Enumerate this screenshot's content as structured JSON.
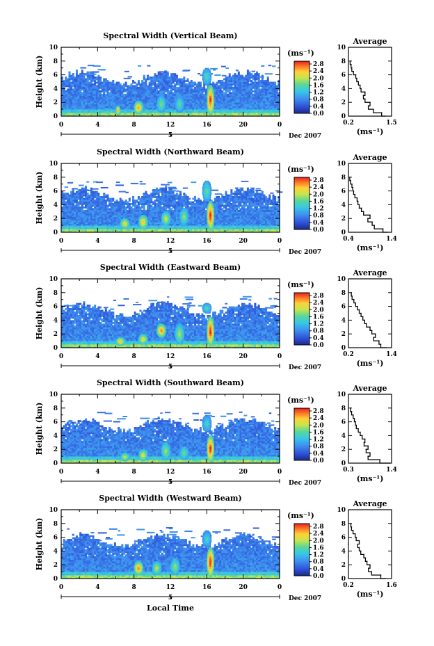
{
  "chart_data": [
    {
      "type": "heatmap",
      "title": "Spectral Width (Vertical Beam)",
      "ylabel": "Height (km)",
      "xlabel": "",
      "date_label": "5",
      "month_label": "Dec 2007",
      "x_ticks": [
        "0",
        "4",
        "8",
        "12",
        "16",
        "20",
        "0"
      ],
      "y_ticks": [
        "0",
        "2",
        "4",
        "6",
        "8",
        "10"
      ],
      "xlim": [
        0,
        24
      ],
      "ylim": [
        0,
        10
      ],
      "colorbar": {
        "unit": "(ms⁻¹)",
        "ticks": [
          "0.0",
          "0.4",
          "0.8",
          "1.2",
          "1.6",
          "2.0",
          "2.4",
          "2.8"
        ],
        "range": [
          0,
          2.8
        ]
      },
      "regions": [
        {
          "x": [
            6,
            6.5
          ],
          "y": [
            0.2,
            1.5
          ],
          "value": 2.5
        },
        {
          "x": [
            8,
            9
          ],
          "y": [
            0.3,
            2.2
          ],
          "value": 2.4
        },
        {
          "x": [
            10.5,
            11.5
          ],
          "y": [
            0.5,
            3.0
          ],
          "value": 1.6
        },
        {
          "x": [
            12.5,
            13.5
          ],
          "y": [
            0.5,
            3.0
          ],
          "value": 1.5
        },
        {
          "x": [
            16,
            16.8
          ],
          "y": [
            0.2,
            4.5
          ],
          "value": 2.8
        },
        {
          "x": [
            15.5,
            16.5
          ],
          "y": [
            4.5,
            7.0
          ],
          "value": 1.4
        }
      ],
      "profile": {
        "title": "Average",
        "xlabel": "(ms⁻¹)",
        "x_ticks": [
          "0.2",
          "1.5"
        ],
        "xlim": [
          0.2,
          1.5
        ],
        "y": [
          0,
          0.5,
          1,
          1.5,
          2,
          2.5,
          3,
          3.5,
          4,
          4.5,
          5,
          5.5,
          6,
          6.5,
          7,
          7.5,
          8
        ],
        "x": [
          1.3,
          1.2,
          0.95,
          0.8,
          0.85,
          0.7,
          0.65,
          0.7,
          0.58,
          0.55,
          0.5,
          0.45,
          0.42,
          0.35,
          0.3,
          0.28,
          0.25
        ]
      }
    },
    {
      "type": "heatmap",
      "title": "Spectral Width (Northward Beam)",
      "ylabel": "Height (km)",
      "xlabel": "",
      "date_label": "5",
      "month_label": "Dec 2007",
      "x_ticks": [
        "0",
        "4",
        "8",
        "12",
        "16",
        "20",
        "0"
      ],
      "y_ticks": [
        "0",
        "2",
        "4",
        "6",
        "8",
        "10"
      ],
      "xlim": [
        0,
        24
      ],
      "ylim": [
        0,
        10
      ],
      "colorbar": {
        "unit": "(ms⁻¹)",
        "ticks": [
          "0.0",
          "0.4",
          "0.8",
          "1.2",
          "1.6",
          "2.0",
          "2.4",
          "2.8"
        ],
        "range": [
          0,
          2.8
        ]
      },
      "regions": [
        {
          "x": [
            6.5,
            7.5
          ],
          "y": [
            0.5,
            2.0
          ],
          "value": 2.2
        },
        {
          "x": [
            8.5,
            9.5
          ],
          "y": [
            0.5,
            2.5
          ],
          "value": 2.3
        },
        {
          "x": [
            11,
            12
          ],
          "y": [
            1.0,
            3.0
          ],
          "value": 2.0
        },
        {
          "x": [
            13,
            14
          ],
          "y": [
            1.0,
            3.5
          ],
          "value": 1.7
        },
        {
          "x": [
            16,
            16.8
          ],
          "y": [
            0.3,
            4.5
          ],
          "value": 2.8
        },
        {
          "x": [
            15.5,
            16.5
          ],
          "y": [
            4.5,
            7.5
          ],
          "value": 1.5
        }
      ],
      "profile": {
        "title": "Average",
        "xlabel": "(ms⁻¹)",
        "x_ticks": [
          "0.4",
          "1.4"
        ],
        "xlim": [
          0.4,
          1.4
        ],
        "y": [
          0,
          0.5,
          1,
          1.5,
          2,
          2.5,
          3,
          3.5,
          4,
          4.5,
          5,
          5.5,
          6,
          6.5,
          7,
          7.5,
          8
        ],
        "x": [
          1.3,
          1.2,
          1.0,
          0.95,
          0.85,
          0.9,
          0.75,
          0.7,
          0.65,
          0.62,
          0.6,
          0.55,
          0.52,
          0.5,
          0.48,
          0.45,
          0.43
        ]
      }
    },
    {
      "type": "heatmap",
      "title": "Spectral Width (Eastward Beam)",
      "ylabel": "Height (km)",
      "xlabel": "",
      "date_label": "5",
      "month_label": "Dec 2007",
      "x_ticks": [
        "0",
        "4",
        "8",
        "12",
        "16",
        "20",
        "0"
      ],
      "y_ticks": [
        "0",
        "2",
        "4",
        "6",
        "8",
        "10"
      ],
      "xlim": [
        0,
        24
      ],
      "ylim": [
        0,
        10
      ],
      "colorbar": {
        "unit": "(ms⁻¹)",
        "ticks": [
          "0.0",
          "0.4",
          "0.8",
          "1.2",
          "1.6",
          "2.0",
          "2.4",
          "2.8"
        ],
        "range": [
          0,
          2.8
        ]
      },
      "regions": [
        {
          "x": [
            6,
            7
          ],
          "y": [
            0.3,
            1.5
          ],
          "value": 2.3
        },
        {
          "x": [
            8.5,
            9.5
          ],
          "y": [
            0.5,
            2.0
          ],
          "value": 2.2
        },
        {
          "x": [
            10.5,
            11.5
          ],
          "y": [
            1.5,
            3.5
          ],
          "value": 2.5
        },
        {
          "x": [
            12.5,
            13.5
          ],
          "y": [
            0.5,
            3.5
          ],
          "value": 1.8
        },
        {
          "x": [
            16,
            16.8
          ],
          "y": [
            0.2,
            4.5
          ],
          "value": 2.8
        },
        {
          "x": [
            15.5,
            16.5
          ],
          "y": [
            5.0,
            6.5
          ],
          "value": 1.4
        }
      ],
      "profile": {
        "title": "Average",
        "xlabel": "(ms⁻¹)",
        "x_ticks": [
          "0.2",
          "1.4"
        ],
        "xlim": [
          0.2,
          1.4
        ],
        "y": [
          0,
          0.5,
          1,
          1.5,
          2,
          2.5,
          3,
          3.5,
          4,
          4.5,
          5,
          5.5,
          6,
          6.5,
          7,
          7.5,
          8
        ],
        "x": [
          1.25,
          1.1,
          1.05,
          0.9,
          0.95,
          0.85,
          0.8,
          0.7,
          0.65,
          0.6,
          0.55,
          0.5,
          0.45,
          0.4,
          0.35,
          0.3,
          0.28
        ]
      }
    },
    {
      "type": "heatmap",
      "title": "Spectral Width (Southward Beam)",
      "ylabel": "Height (km)",
      "xlabel": "",
      "date_label": "5",
      "month_label": "Dec 2007",
      "x_ticks": [
        "0",
        "4",
        "8",
        "12",
        "16",
        "20",
        "0"
      ],
      "y_ticks": [
        "0",
        "2",
        "4",
        "6",
        "8",
        "10"
      ],
      "xlim": [
        0,
        24
      ],
      "ylim": [
        0,
        10
      ],
      "colorbar": {
        "unit": "(ms⁻¹)",
        "ticks": [
          "0.0",
          "0.4",
          "0.8",
          "1.2",
          "1.6",
          "2.0",
          "2.4",
          "2.8"
        ],
        "range": [
          0,
          2.8
        ]
      },
      "regions": [
        {
          "x": [
            6.5,
            7.5
          ],
          "y": [
            0.3,
            1.5
          ],
          "value": 2.0
        },
        {
          "x": [
            8.5,
            9.5
          ],
          "y": [
            0.3,
            2.0
          ],
          "value": 2.1
        },
        {
          "x": [
            11,
            12
          ],
          "y": [
            0.5,
            3.0
          ],
          "value": 1.8
        },
        {
          "x": [
            13,
            14
          ],
          "y": [
            0.5,
            2.5
          ],
          "value": 1.6
        },
        {
          "x": [
            16,
            16.8
          ],
          "y": [
            0.2,
            4.0
          ],
          "value": 2.8
        },
        {
          "x": [
            15.5,
            16.5
          ],
          "y": [
            4.5,
            7.0
          ],
          "value": 1.3
        }
      ],
      "profile": {
        "title": "Average",
        "xlabel": "(ms⁻¹)",
        "x_ticks": [
          "0.3",
          "1.4"
        ],
        "xlim": [
          0.3,
          1.4
        ],
        "y": [
          0,
          0.5,
          1,
          1.5,
          2,
          2.5,
          3,
          3.5,
          4,
          4.5,
          5,
          5.5,
          6,
          6.5,
          7,
          7.5,
          8
        ],
        "x": [
          1.35,
          1.1,
          0.8,
          0.85,
          0.75,
          0.8,
          0.7,
          0.72,
          0.65,
          0.6,
          0.55,
          0.5,
          0.48,
          0.45,
          0.42,
          0.38,
          0.35
        ]
      }
    },
    {
      "type": "heatmap",
      "title": "Spectral Width (Westward Beam)",
      "ylabel": "Height (km)",
      "xlabel": "Local Time",
      "date_label": "5",
      "month_label": "Dec 2007",
      "x_ticks": [
        "0",
        "4",
        "8",
        "12",
        "16",
        "20",
        "0"
      ],
      "y_ticks": [
        "0",
        "2",
        "4",
        "6",
        "8",
        "10"
      ],
      "xlim": [
        0,
        24
      ],
      "ylim": [
        0,
        10
      ],
      "colorbar": {
        "unit": "(ms⁻¹)",
        "ticks": [
          "0.0",
          "0.4",
          "0.8",
          "1.2",
          "1.6",
          "2.0",
          "2.4",
          "2.8"
        ],
        "range": [
          0,
          2.8
        ]
      },
      "regions": [
        {
          "x": [
            8,
            9
          ],
          "y": [
            0.5,
            2.5
          ],
          "value": 2.5
        },
        {
          "x": [
            10,
            11
          ],
          "y": [
            0.5,
            2.5
          ],
          "value": 1.9
        },
        {
          "x": [
            12,
            13
          ],
          "y": [
            0.5,
            3.0
          ],
          "value": 1.7
        },
        {
          "x": [
            16,
            16.8
          ],
          "y": [
            0.2,
            4.5
          ],
          "value": 2.8
        },
        {
          "x": [
            15.5,
            16.5
          ],
          "y": [
            4.5,
            7.0
          ],
          "value": 1.3
        }
      ],
      "profile": {
        "title": "Average",
        "xlabel": "(ms⁻¹)",
        "x_ticks": [
          "0.2",
          "1.6"
        ],
        "xlim": [
          0.2,
          1.6
        ],
        "y": [
          0,
          0.5,
          1,
          1.5,
          2,
          2.5,
          3,
          3.5,
          4,
          4.5,
          5,
          5.5,
          6,
          6.5,
          7,
          7.5,
          8
        ],
        "x": [
          1.4,
          1.25,
          0.95,
          0.85,
          0.9,
          0.8,
          0.75,
          0.7,
          0.6,
          0.55,
          0.5,
          0.55,
          0.45,
          0.42,
          0.35,
          0.3,
          0.28
        ]
      }
    }
  ]
}
